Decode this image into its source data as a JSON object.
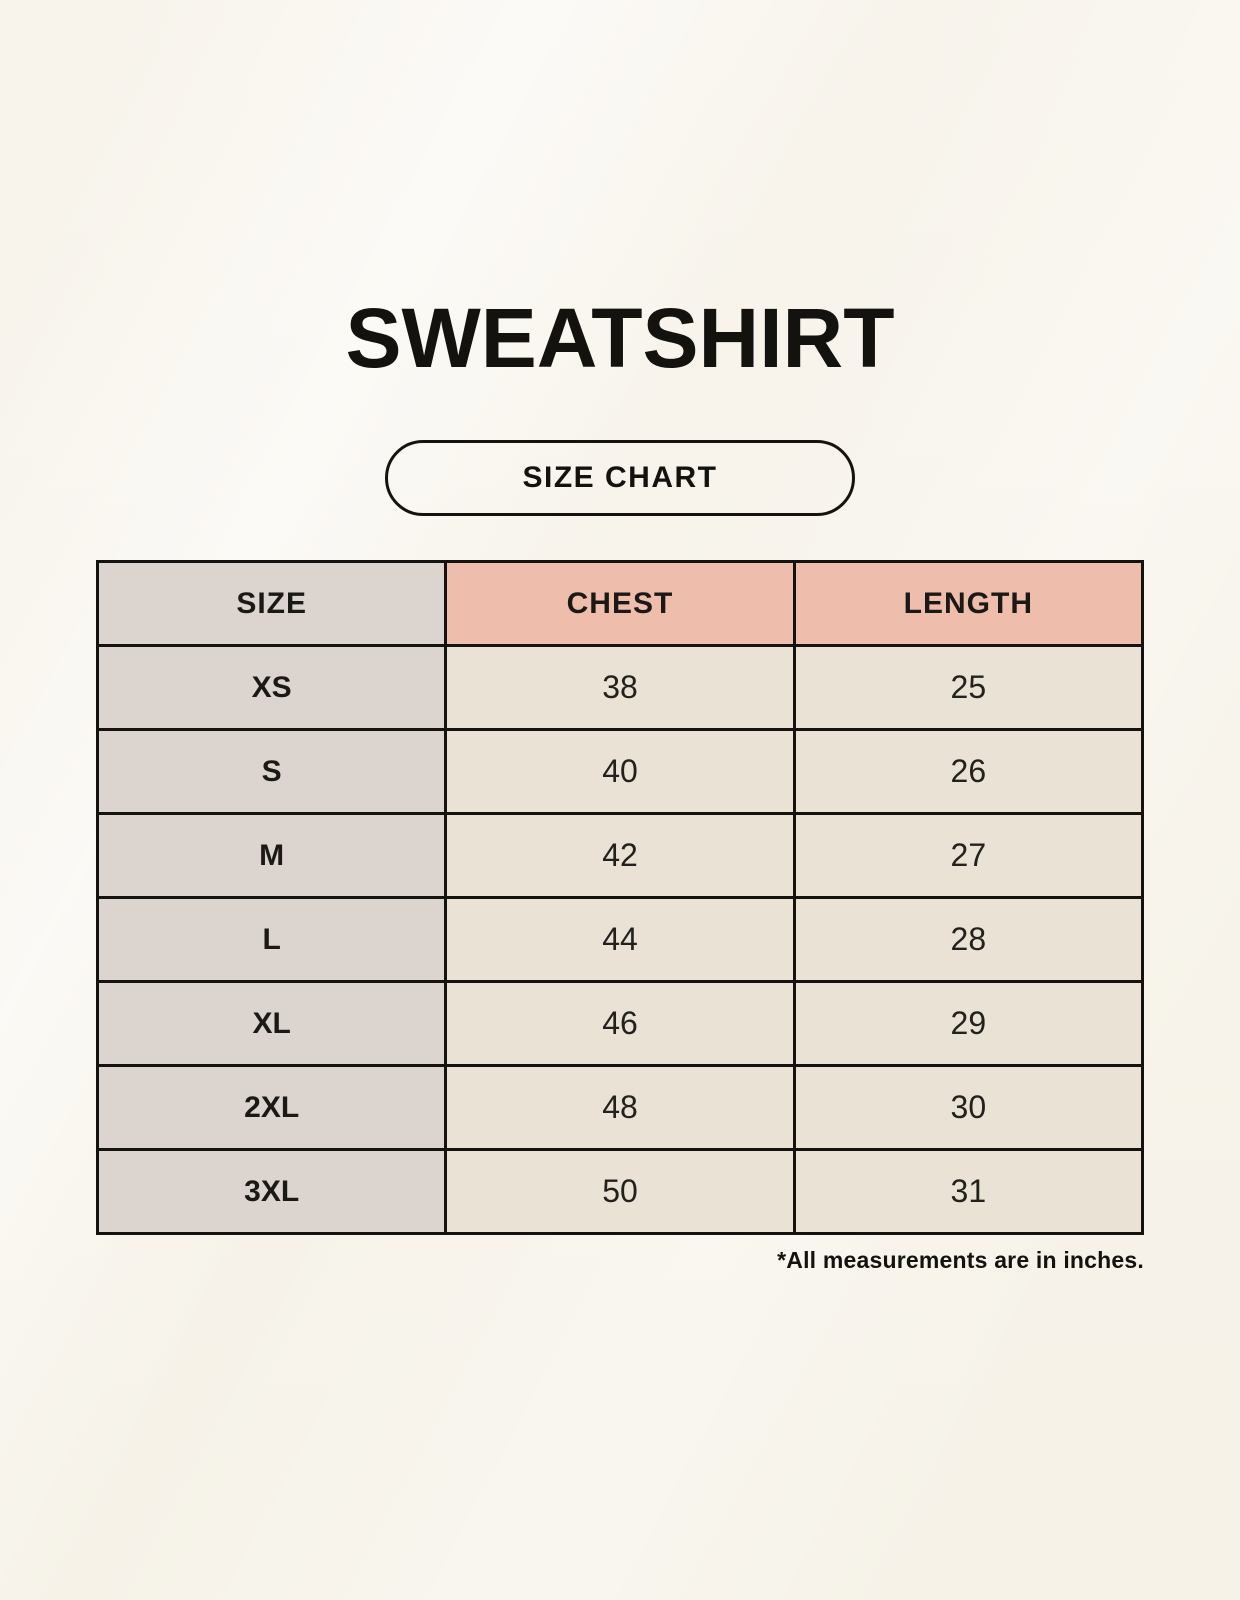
{
  "page": {
    "title": "SWEATSHIRT",
    "badge_label": "SIZE CHART",
    "footnote": "*All measurements are in inches."
  },
  "colors": {
    "page_background": "#f7f3ea",
    "header_accent": "#efbdac",
    "size_column_fill": "#dbd4cf",
    "value_cell_fill": "#e9e2d5",
    "table_border": "#15130f",
    "text": "#14120f"
  },
  "chart_data": {
    "type": "table",
    "title": "SWEATSHIRT",
    "subtitle": "SIZE CHART",
    "columns": [
      "SIZE",
      "CHEST",
      "LENGTH"
    ],
    "rows": [
      [
        "XS",
        "38",
        "25"
      ],
      [
        "S",
        "40",
        "26"
      ],
      [
        "M",
        "42",
        "27"
      ],
      [
        "L",
        "44",
        "28"
      ],
      [
        "XL",
        "46",
        "29"
      ],
      [
        "2XL",
        "48",
        "30"
      ],
      [
        "3XL",
        "50",
        "31"
      ]
    ],
    "units": "inches",
    "note": "*All measurements are in inches.",
    "layout": {
      "grid": true,
      "header_row": true,
      "column_count": 3,
      "row_count": 7
    }
  }
}
